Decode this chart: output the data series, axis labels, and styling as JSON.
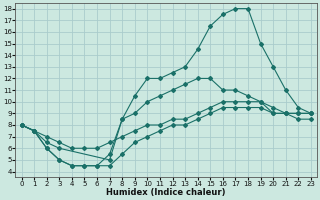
{
  "xlabel": "Humidex (Indice chaleur)",
  "bg_color": "#cce8e0",
  "grid_color": "#aacccc",
  "line_color": "#1a7068",
  "xlim": [
    -0.5,
    23.5
  ],
  "ylim": [
    3.5,
    18.5
  ],
  "xticks": [
    0,
    1,
    2,
    3,
    4,
    5,
    6,
    7,
    8,
    9,
    10,
    11,
    12,
    13,
    14,
    15,
    16,
    17,
    18,
    19,
    20,
    21,
    22,
    23
  ],
  "yticks": [
    4,
    5,
    6,
    7,
    8,
    9,
    10,
    11,
    12,
    13,
    14,
    15,
    16,
    17,
    18
  ],
  "lines": [
    {
      "x": [
        0,
        1,
        2,
        3,
        7,
        8,
        9,
        10,
        11,
        12,
        13,
        14,
        15,
        16,
        17,
        18,
        19,
        20,
        21,
        22,
        23
      ],
      "y": [
        8,
        7.5,
        6.5,
        6,
        5,
        8.5,
        10.5,
        12,
        12,
        12.5,
        13,
        14.5,
        16.5,
        17.5,
        18,
        18,
        15,
        13,
        11,
        9.5,
        9
      ]
    },
    {
      "x": [
        0,
        1,
        2,
        3,
        4,
        5,
        6,
        7,
        8,
        9,
        10,
        11,
        12,
        13,
        14,
        15,
        16,
        17,
        18,
        19,
        20,
        21,
        22,
        23
      ],
      "y": [
        8,
        7.5,
        6,
        5,
        4.5,
        4.5,
        4.5,
        5.5,
        8.5,
        9,
        10,
        10.5,
        11,
        11.5,
        12,
        12,
        11,
        11,
        10.5,
        10,
        9,
        9,
        9,
        9
      ]
    },
    {
      "x": [
        0,
        1,
        2,
        3,
        4,
        5,
        6,
        7,
        8,
        9,
        10,
        11,
        12,
        13,
        14,
        15,
        16,
        17,
        18,
        19,
        20,
        21,
        22,
        23
      ],
      "y": [
        8,
        7.5,
        7,
        6.5,
        6,
        6,
        6,
        6.5,
        7,
        7.5,
        8,
        8,
        8.5,
        8.5,
        9,
        9.5,
        10,
        10,
        10,
        10,
        9.5,
        9,
        9,
        9
      ]
    },
    {
      "x": [
        0,
        1,
        2,
        3,
        4,
        5,
        6,
        7,
        8,
        9,
        10,
        11,
        12,
        13,
        14,
        15,
        16,
        17,
        18,
        19,
        20,
        21,
        22,
        23
      ],
      "y": [
        8,
        7.5,
        6,
        5,
        4.5,
        4.5,
        4.5,
        4.5,
        5.5,
        6.5,
        7,
        7.5,
        8,
        8,
        8.5,
        9,
        9.5,
        9.5,
        9.5,
        9.5,
        9,
        9,
        8.5,
        8.5
      ]
    }
  ]
}
